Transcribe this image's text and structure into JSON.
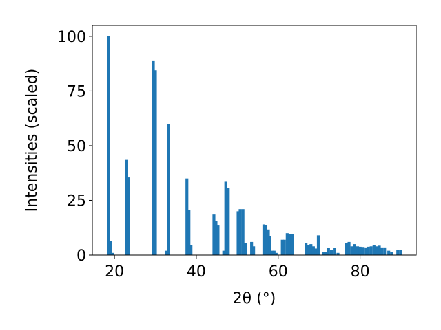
{
  "chart_data": {
    "type": "bar",
    "title": "",
    "xlabel": "2θ (°)",
    "ylabel": "Intensities (scaled)",
    "xlim": [
      14.6,
      93.7
    ],
    "ylim": [
      0,
      105
    ],
    "xticks": [
      20,
      40,
      60,
      80
    ],
    "yticks": [
      0,
      25,
      50,
      75,
      100
    ],
    "grid": false,
    "bar_color": "#1f77b4",
    "bar_width": 0.7,
    "series": [
      {
        "x": [
          18.5,
          19.0,
          19.5,
          23.0,
          23.4,
          29.5,
          30.0,
          32.7,
          33.2,
          37.7,
          38.2,
          38.7,
          44.3,
          44.8,
          45.3,
          46.7,
          47.2,
          47.8,
          50.2,
          50.7,
          51.4,
          52.0,
          53.5,
          54.0,
          56.5,
          57.0,
          57.6,
          58.0,
          58.5,
          59.0,
          59.5,
          61.0,
          61.5,
          62.2,
          62.8,
          63.4,
          66.8,
          67.4,
          68.0,
          68.6,
          69.2,
          69.8,
          71.0,
          71.6,
          72.3,
          73.0,
          73.7,
          74.6,
          76.7,
          77.3,
          78.0,
          78.7,
          79.4,
          80.0,
          80.6,
          81.3,
          82.0,
          82.7,
          83.4,
          84.0,
          84.7,
          85.3,
          86.0,
          87.0,
          87.7,
          89.2,
          89.9
        ],
        "values": [
          100,
          6.5,
          1,
          43.5,
          35.5,
          89,
          84.5,
          2,
          60,
          35,
          20.5,
          4.5,
          18.5,
          15.5,
          13.5,
          2,
          33.5,
          30.5,
          20,
          21,
          21,
          5.5,
          6,
          4,
          14,
          13.8,
          11.7,
          8.5,
          2,
          2,
          1,
          7,
          7,
          10,
          9.5,
          9.5,
          5.5,
          4.5,
          5,
          4,
          3,
          9,
          1.5,
          1.5,
          3.2,
          2.5,
          3.2,
          1,
          5.5,
          6,
          4,
          5,
          4,
          3.8,
          3.7,
          3.5,
          3.8,
          4,
          4.5,
          4,
          4.3,
          3.5,
          3.5,
          2,
          1.5,
          2.5,
          2.5
        ]
      }
    ]
  }
}
